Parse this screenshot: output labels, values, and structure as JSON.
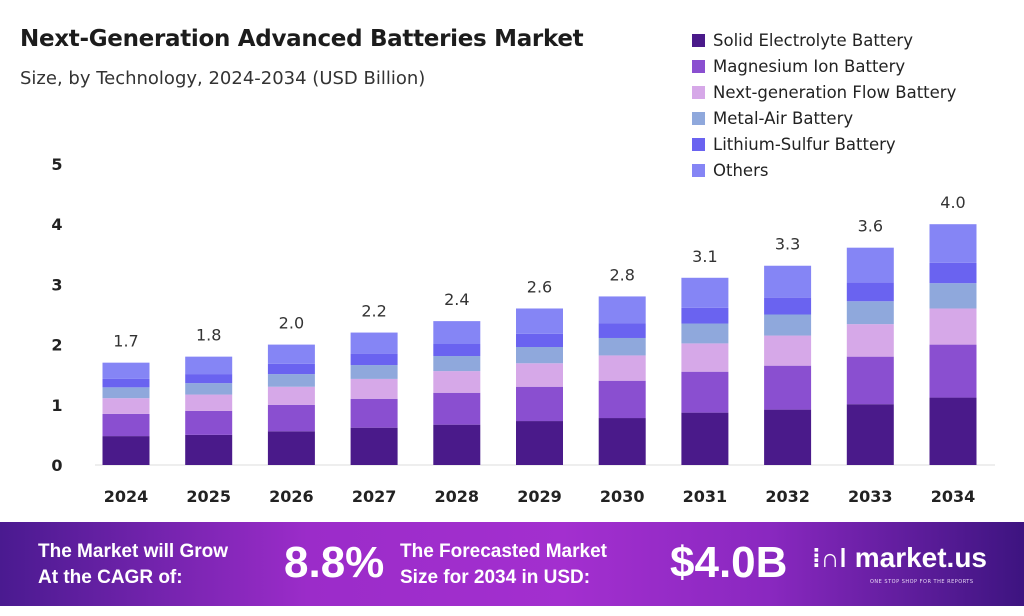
{
  "chart_data": {
    "type": "stacked-bar",
    "title": "Next-Generation Advanced Batteries Market",
    "subtitle": "Size, by Technology, 2024-2034 (USD Billion)",
    "categories": [
      "2024",
      "2025",
      "2026",
      "2027",
      "2028",
      "2029",
      "2030",
      "2031",
      "2032",
      "2033",
      "2034"
    ],
    "totals": [
      "1.7",
      "1.8",
      "2.0",
      "2.2",
      "2.4",
      "2.6",
      "2.8",
      "3.1",
      "3.3",
      "3.6",
      "4.0"
    ],
    "ylim": [
      0,
      5
    ],
    "yticks": [
      "0",
      "1",
      "2",
      "3",
      "4",
      "5"
    ],
    "grid": false,
    "legend_position": "top-right",
    "series": [
      {
        "name": "Solid Electrolyte Battery",
        "color": "#4a1a8a",
        "values": [
          0.48,
          0.5,
          0.56,
          0.62,
          0.67,
          0.73,
          0.78,
          0.87,
          0.92,
          1.01,
          1.12
        ]
      },
      {
        "name": "Magnesium Ion Battery",
        "color": "#8a4fd0",
        "values": [
          0.37,
          0.4,
          0.44,
          0.48,
          0.53,
          0.57,
          0.62,
          0.68,
          0.73,
          0.79,
          0.88
        ]
      },
      {
        "name": "Next-generation Flow Battery",
        "color": "#d6a8e8",
        "values": [
          0.26,
          0.27,
          0.3,
          0.33,
          0.36,
          0.39,
          0.42,
          0.47,
          0.5,
          0.54,
          0.6
        ]
      },
      {
        "name": "Metal-Air Battery",
        "color": "#8fa8dc",
        "values": [
          0.18,
          0.19,
          0.21,
          0.23,
          0.25,
          0.27,
          0.29,
          0.33,
          0.35,
          0.38,
          0.42
        ]
      },
      {
        "name": "Lithium-Sulfur Battery",
        "color": "#6a63f0",
        "values": [
          0.14,
          0.15,
          0.17,
          0.19,
          0.2,
          0.22,
          0.24,
          0.26,
          0.28,
          0.31,
          0.34
        ]
      },
      {
        "name": "Others",
        "color": "#8585f5",
        "values": [
          0.27,
          0.29,
          0.32,
          0.35,
          0.38,
          0.42,
          0.45,
          0.5,
          0.53,
          0.58,
          0.64
        ]
      }
    ]
  },
  "footer": {
    "cagr_label_1": "The Market will Grow",
    "cagr_label_2": "At the CAGR of:",
    "cagr_value": "8.8%",
    "forecast_label_1": "The Forecasted Market",
    "forecast_label_2": "Size for 2034 in USD:",
    "forecast_value": "$4.0B",
    "logo_text": "market.us",
    "logo_tagline": "ONE STOP SHOP FOR THE REPORTS"
  }
}
